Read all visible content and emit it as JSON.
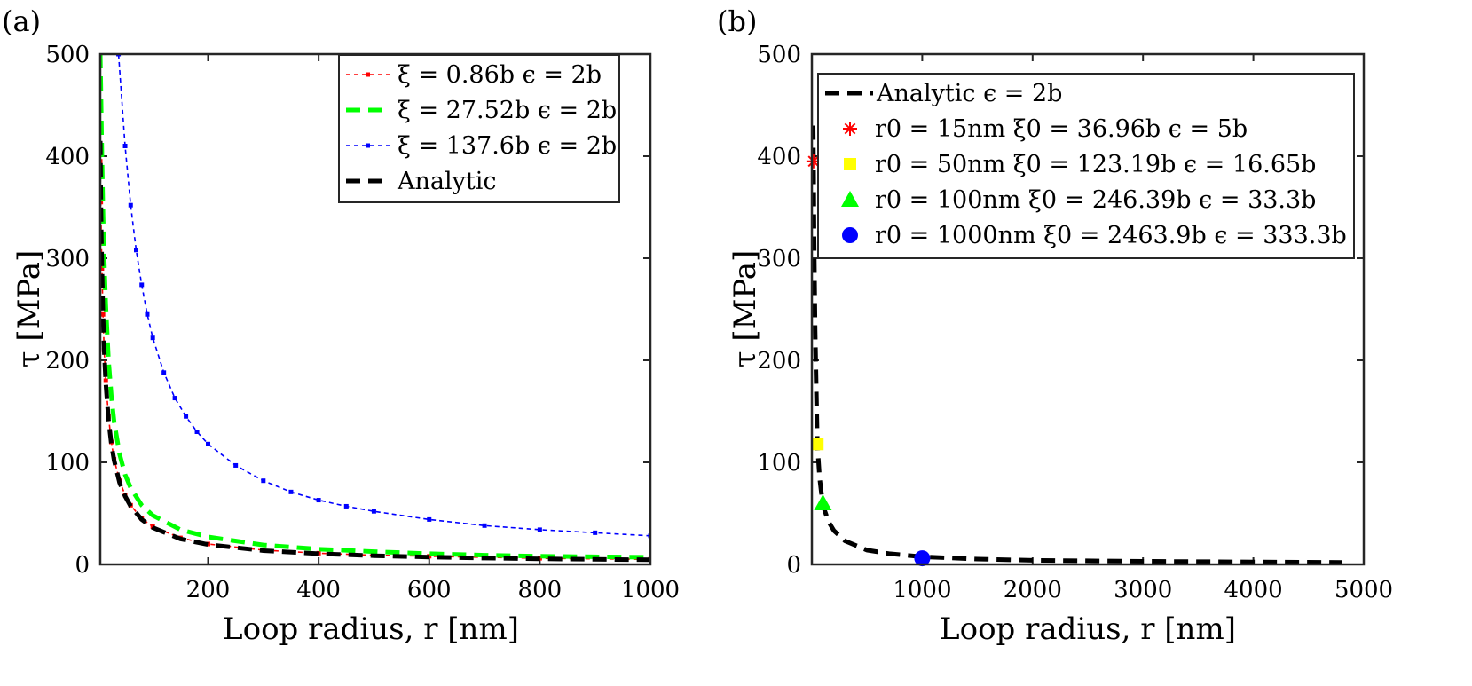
{
  "chart_data": [
    {
      "panel_label": "(a)",
      "type": "line",
      "xlabel": "Loop radius, r [nm]",
      "ylabel": "τ [MPa]",
      "xlim": [
        5,
        1000
      ],
      "ylim": [
        0,
        500
      ],
      "xticks": [
        200,
        400,
        600,
        800,
        1000
      ],
      "yticks": [
        0,
        100,
        200,
        300,
        400,
        500
      ],
      "legend_position": "top-right",
      "series": [
        {
          "name": "ξ = 0.86b ϵ = 2b",
          "color": "#ff0000",
          "style": "dotted-marker",
          "x": [
            5,
            6,
            7,
            8,
            10,
            12,
            15,
            20,
            25,
            30,
            40,
            50,
            60,
            80,
            100,
            150,
            200,
            300,
            400,
            500,
            600,
            700,
            800,
            900,
            1000
          ],
          "y": [
            395,
            355,
            320,
            290,
            245,
            210,
            180,
            145,
            120,
            103,
            82,
            68,
            58,
            45,
            37,
            26,
            20,
            14,
            11,
            9,
            8,
            7,
            6,
            5.5,
            5
          ]
        },
        {
          "name": "ξ = 27.52b ϵ = 2b",
          "color": "#00ff00",
          "style": "dashed-thick",
          "x": [
            5,
            6,
            8,
            10,
            12,
            15,
            20,
            25,
            30,
            40,
            50,
            60,
            80,
            100,
            150,
            200,
            300,
            400,
            500,
            600,
            700,
            800,
            900,
            1000
          ],
          "y": [
            500,
            470,
            400,
            345,
            300,
            255,
            200,
            165,
            140,
            108,
            88,
            75,
            58,
            48,
            34,
            27,
            19,
            15,
            12.5,
            10.5,
            9,
            8,
            7.5,
            7
          ]
        },
        {
          "name": "ξ = 137.6b ϵ = 2b",
          "color": "#0000ff",
          "style": "dotted-marker",
          "x": [
            38,
            50,
            60,
            70,
            80,
            90,
            100,
            120,
            140,
            160,
            180,
            200,
            250,
            300,
            350,
            400,
            450,
            500,
            600,
            700,
            800,
            900,
            1000
          ],
          "y": [
            500,
            410,
            352,
            308,
            274,
            245,
            222,
            188,
            163,
            145,
            130,
            118,
            97,
            82,
            71,
            63,
            57,
            52,
            44,
            38,
            34,
            31,
            28
          ]
        },
        {
          "name": "Analytic",
          "color": "#000000",
          "style": "dashed-thick",
          "x": [
            5,
            6,
            7,
            8,
            10,
            12,
            15,
            20,
            25,
            30,
            40,
            50,
            60,
            80,
            100,
            150,
            200,
            300,
            400,
            500,
            600,
            700,
            800,
            900,
            1000
          ],
          "y": [
            415,
            360,
            322,
            290,
            245,
            210,
            178,
            142,
            118,
            102,
            80,
            67,
            57,
            44,
            36,
            25,
            19.5,
            13.5,
            10.5,
            8.5,
            7.2,
            6.2,
            5.5,
            5,
            4.5
          ]
        }
      ]
    },
    {
      "panel_label": "(b)",
      "type": "line",
      "xlabel": "Loop radius, r [nm]",
      "ylabel": "τ [MPa]",
      "xlim": [
        0,
        5000
      ],
      "ylim": [
        0,
        500
      ],
      "xticks": [
        1000,
        2000,
        3000,
        4000,
        5000
      ],
      "yticks": [
        0,
        100,
        200,
        300,
        400,
        500
      ],
      "legend_position": "top-left",
      "series": [
        {
          "name": "Analytic ϵ = 2b",
          "color": "#000000",
          "style": "dashed-thick",
          "x": [
            12,
            15,
            20,
            30,
            50,
            70,
            100,
            150,
            200,
            300,
            500,
            700,
            1000,
            1500,
            2000,
            3000,
            4000,
            4800
          ],
          "y": [
            430,
            395,
            320,
            230,
            118,
            85,
            58,
            42,
            33,
            23,
            14,
            10.5,
            7.5,
            5.2,
            4,
            3,
            2.4,
            2
          ]
        }
      ],
      "markers": [
        {
          "label": "r0 = 15nm ξ0 = 36.96b ϵ = 5b",
          "symbol": "star",
          "color": "#ff0000",
          "x": 15,
          "y": 395
        },
        {
          "label": "r0 = 50nm ξ0 = 123.19b ϵ = 16.65b",
          "symbol": "square",
          "color": "#ffff00",
          "x": 50,
          "y": 118
        },
        {
          "label": "r0 = 100nm ξ0 = 246.39b ϵ = 33.3b",
          "symbol": "triangle",
          "color": "#00ff00",
          "x": 100,
          "y": 60
        },
        {
          "label": "r0 = 1000nm ξ0 = 2463.9b ϵ = 333.3b",
          "symbol": "circle",
          "color": "#0000ff",
          "x": 1000,
          "y": 6
        }
      ]
    }
  ]
}
